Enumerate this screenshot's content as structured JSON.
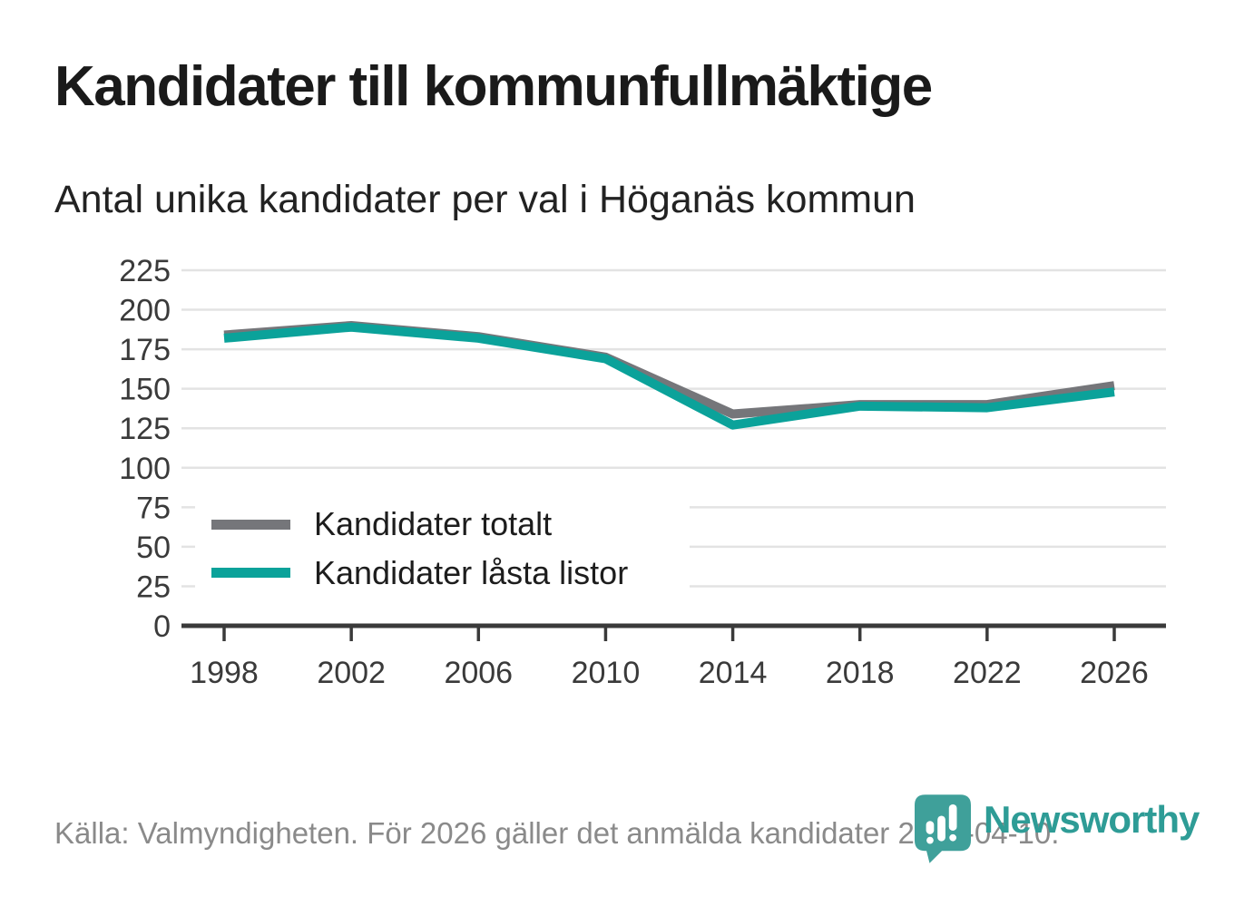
{
  "header": {
    "title": "Kandidater till kommunfullmäktige",
    "subtitle": "Antal unika kandidater per val i Höganäs kommun"
  },
  "footer": {
    "source": "Källa: Valmyndigheten. För 2026 gäller det anmälda kandidater 2026-04-10."
  },
  "branding": {
    "logo_text": "Newsworthy",
    "logo_text_color": "#2e9c96",
    "logo_icon_color": "#3fa09a",
    "logo_icon_name": "bar-chart-speech-bubble-icon"
  },
  "chart_data": {
    "type": "line",
    "x": [
      1998,
      2002,
      2006,
      2010,
      2014,
      2018,
      2022,
      2026
    ],
    "series": [
      {
        "name": "Kandidater totalt",
        "color": "#75767a",
        "values": [
          184,
          190,
          183,
          170,
          134,
          140,
          140,
          152
        ]
      },
      {
        "name": "Kandidater låsta listor",
        "color": "#0ba29a",
        "values": [
          182,
          189,
          182,
          169,
          127,
          139,
          138,
          148
        ]
      }
    ],
    "title": "Kandidater till kommunfullmäktige",
    "subtitle": "Antal unika kandidater per val i Höganäs kommun",
    "xlabel": "",
    "ylabel": "",
    "ylim": [
      0,
      225
    ],
    "ytick_step": 25,
    "grid": "horizontal",
    "gridline_color": "#e3e3e3",
    "axis_color": "#3a3a3a",
    "tick_label_color": "#3a3a3a",
    "legend_position": "inside-bottom-left"
  }
}
